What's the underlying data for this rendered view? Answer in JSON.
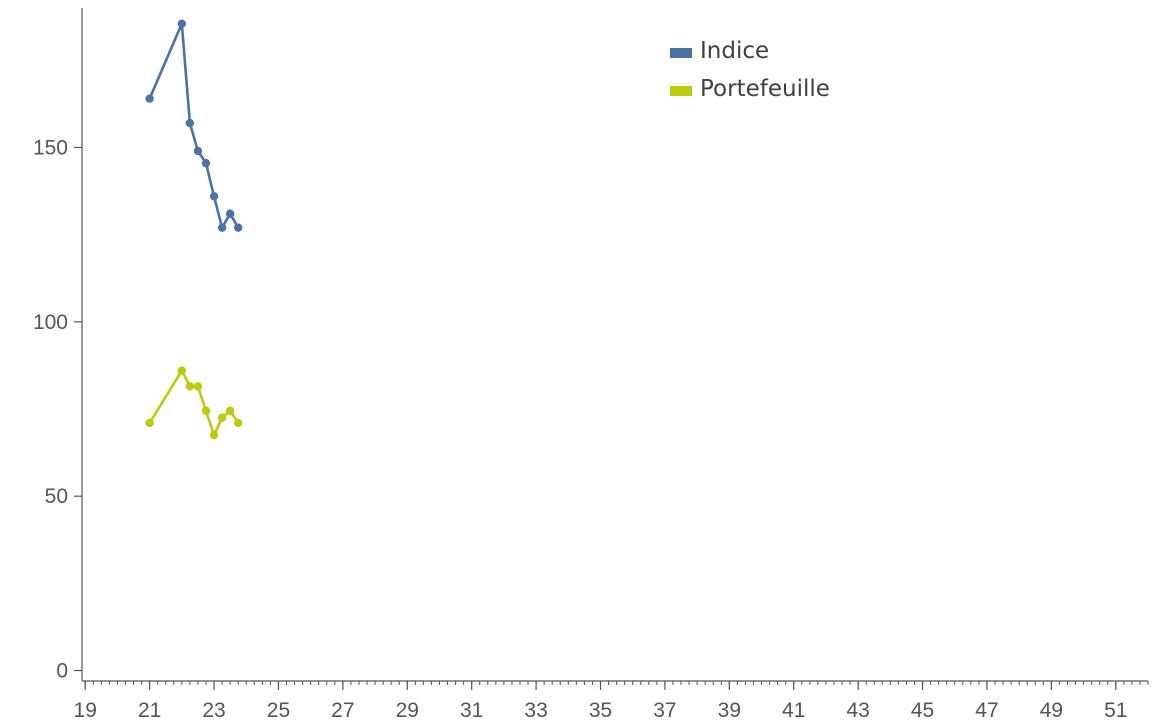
{
  "chart_data": {
    "type": "line",
    "title": "",
    "xlabel": "",
    "ylabel": "",
    "xlim": [
      18.9,
      52
    ],
    "ylim": [
      -3,
      190
    ],
    "x_ticks": [
      19,
      21,
      23,
      25,
      27,
      29,
      31,
      33,
      35,
      37,
      39,
      41,
      43,
      45,
      47,
      49,
      51
    ],
    "x_minor_step": 0.25,
    "y_ticks": [
      0,
      50,
      100,
      150
    ],
    "grid": false,
    "legend_position": "top-center",
    "series": [
      {
        "name": "Indice",
        "color": "#4a72a5",
        "x": [
          21.0,
          22.0,
          22.25,
          22.5,
          22.75,
          23.0,
          23.25,
          23.5,
          23.75
        ],
        "y": [
          164,
          185.5,
          157,
          149,
          145.5,
          136,
          127,
          131,
          127
        ]
      },
      {
        "name": "Portefeuille",
        "color": "#bccb0a",
        "x": [
          21.0,
          22.0,
          22.25,
          22.5,
          22.75,
          23.0,
          23.25,
          23.5,
          23.75
        ],
        "y": [
          71,
          86,
          81.5,
          81.5,
          74.5,
          67.5,
          72.5,
          74.5,
          71
        ]
      }
    ]
  }
}
